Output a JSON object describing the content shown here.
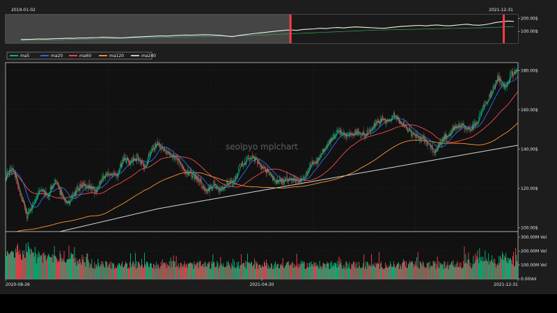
{
  "chart_data": [
    {
      "type": "line",
      "name_role": "overview",
      "x_start_label": "2019-01-02",
      "x_end_label": "2021-12-31",
      "y_tick_labels": [
        "100.00$",
        "200.00$"
      ],
      "y_ticks": [
        100,
        200
      ],
      "ylim": [
        10,
        230
      ],
      "selection_start_fraction": 0.556,
      "selection_end_fraction": 1.0,
      "series_price": [
        38,
        39,
        40,
        42,
        41,
        43,
        45,
        46,
        48,
        47,
        50,
        49,
        52,
        53,
        55,
        54,
        52,
        50,
        53,
        56,
        58,
        60,
        62,
        64,
        66,
        65,
        68,
        70,
        72,
        71,
        73,
        75,
        74,
        72,
        70,
        65,
        60,
        68,
        74,
        80,
        85,
        90,
        95,
        100,
        105,
        110,
        112,
        108,
        115,
        118,
        120,
        125,
        122,
        128,
        130,
        127,
        132,
        135,
        133,
        130,
        128,
        126,
        125,
        130,
        135,
        140,
        142,
        145,
        147,
        143,
        148,
        150,
        145,
        143,
        148,
        152,
        156,
        150,
        148,
        152,
        160,
        170,
        175,
        180,
        178
      ],
      "series_ma": [
        30,
        31,
        32,
        33,
        34,
        35,
        36,
        37,
        38,
        39,
        40,
        41,
        42,
        43,
        44,
        45,
        46,
        47,
        48,
        49,
        50,
        51,
        52,
        53,
        54,
        55,
        56,
        57,
        58,
        59,
        60,
        61,
        62,
        63,
        64,
        64,
        64,
        65,
        66,
        68,
        70,
        72,
        74,
        76,
        78,
        80,
        82,
        84,
        86,
        88,
        90,
        92,
        94,
        96,
        98,
        100,
        102,
        104,
        106,
        108,
        110,
        111,
        112,
        113,
        114,
        115,
        116,
        117,
        118,
        119,
        120,
        121,
        122,
        123,
        124,
        125,
        126,
        127,
        128,
        129,
        130,
        132,
        134,
        136,
        138
      ]
    },
    {
      "type": "candlestick",
      "name_role": "main",
      "watermark": "seolpyo mplchart",
      "x_tick_labels": [
        "2020-08-26",
        "2021-04-30",
        "2021-12-31"
      ],
      "y_tick_labels": [
        "100.00$",
        "120.00$",
        "140.00$",
        "160.00$",
        "180.00$"
      ],
      "y_ticks": [
        100,
        120,
        140,
        160,
        180
      ],
      "ylim": [
        98,
        184
      ],
      "legend": [
        "ma5",
        "ma20",
        "ma60",
        "ma120",
        "ma240"
      ],
      "legend_colors": [
        "#00c888",
        "#3a6cf4",
        "#ff4a55",
        "#ff9a2e",
        "#d9d9d9"
      ],
      "close_anchors": [
        [
          0,
          126
        ],
        [
          10,
          131
        ],
        [
          20,
          118
        ],
        [
          30,
          106
        ],
        [
          40,
          113
        ],
        [
          50,
          120
        ],
        [
          60,
          116
        ],
        [
          70,
          124
        ],
        [
          80,
          117
        ],
        [
          90,
          112
        ],
        [
          100,
          118
        ],
        [
          110,
          122
        ],
        [
          120,
          121
        ],
        [
          130,
          118
        ],
        [
          140,
          126
        ],
        [
          150,
          128
        ],
        [
          160,
          126
        ],
        [
          170,
          135
        ],
        [
          180,
          133
        ],
        [
          190,
          136
        ],
        [
          200,
          130
        ],
        [
          210,
          140
        ],
        [
          220,
          143
        ],
        [
          230,
          138
        ],
        [
          240,
          137
        ],
        [
          250,
          134
        ],
        [
          260,
          128
        ],
        [
          270,
          127
        ],
        [
          280,
          124
        ],
        [
          290,
          118
        ],
        [
          300,
          122
        ],
        [
          310,
          119
        ],
        [
          320,
          122
        ],
        [
          330,
          125
        ],
        [
          340,
          132
        ],
        [
          350,
          135
        ],
        [
          360,
          135
        ],
        [
          370,
          130
        ],
        [
          380,
          128
        ],
        [
          390,
          123
        ],
        [
          400,
          124
        ],
        [
          410,
          125
        ],
        [
          420,
          124
        ],
        [
          430,
          125
        ],
        [
          440,
          132
        ],
        [
          450,
          134
        ],
        [
          460,
          140
        ],
        [
          470,
          145
        ],
        [
          480,
          149
        ],
        [
          490,
          147
        ],
        [
          500,
          148
        ],
        [
          510,
          149
        ],
        [
          520,
          147
        ],
        [
          530,
          151
        ],
        [
          540,
          155
        ],
        [
          550,
          154
        ],
        [
          560,
          157
        ],
        [
          570,
          154
        ],
        [
          580,
          150
        ],
        [
          590,
          147
        ],
        [
          600,
          146
        ],
        [
          610,
          142
        ],
        [
          620,
          139
        ],
        [
          630,
          145
        ],
        [
          640,
          148
        ],
        [
          650,
          151
        ],
        [
          660,
          152
        ],
        [
          670,
          150
        ],
        [
          680,
          153
        ],
        [
          690,
          162
        ],
        [
          700,
          168
        ],
        [
          710,
          176
        ],
        [
          720,
          172
        ],
        [
          730,
          178
        ],
        [
          740,
          180
        ]
      ],
      "volume": {
        "y_tick_labels": [
          "0.00Vol",
          "100.00M  Vol",
          "200.00M  Vol",
          "300.00M  Vol"
        ],
        "y_ticks": [
          0,
          100,
          200,
          300
        ],
        "ylim": [
          0,
          340
        ]
      },
      "colors": {
        "up": "#00c888",
        "down": "#ff4a55"
      }
    }
  ]
}
